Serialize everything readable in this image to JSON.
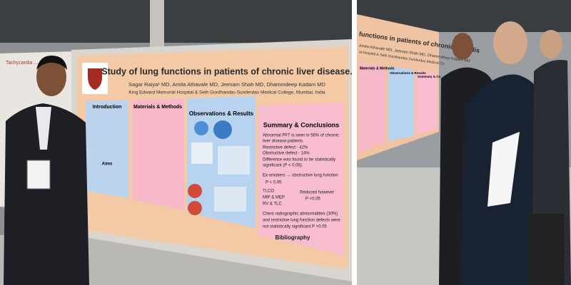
{
  "left_photo": {
    "side_poster": {
      "title": "Tachycardia ... case"
    },
    "poster": {
      "title": "Study of lung functions in patients of chronic liver disease.",
      "authors": "Sagar Raiya¹ MD,  Amita Athavale MD,  Jeenam Shah MD,  Dhammdeep Kadam MD",
      "institution": "King Edward Memorial Hospital & Seth Gordhandas Sunderdas Medical College, Mumbai, India",
      "sections": [
        "Introduction",
        "Materials & Methods",
        "Observations & Results",
        "Summary & Conclusions"
      ],
      "aims": "Aims",
      "summary_lines": [
        "Abnormal PFT is seen in 56% of chronic",
        "liver disease patients.",
        "Restrictive defect - 42%",
        "Obstructive defect - 14%",
        "Difference was found to be statistically",
        "significant (P < 0.05).",
        "Ex-smokers → obstructive lung function",
        "P < 0.05",
        "TLCO",
        "MIP & MEP",
        "RV & TLC",
        "Reduced however",
        "P >0.05",
        "Chest radiographic abnormalities (30%)",
        "and restrictive lung function defects were",
        "not statistically significant P >0.05"
      ],
      "bibliography": "Bibliography"
    }
  },
  "right_photo": {
    "poster": {
      "title": "functions in patients of chronic liver dis",
      "authors": "Amita Athavale MD, Jeenam Shah MD, Dhammdeep Kadam MD",
      "institution": "al Hospital & Seth Gordhandas Sunderdas Medical Co",
      "sections": [
        "Materials & Methods",
        "Observations & Results",
        "Summary & Co"
      ]
    }
  }
}
